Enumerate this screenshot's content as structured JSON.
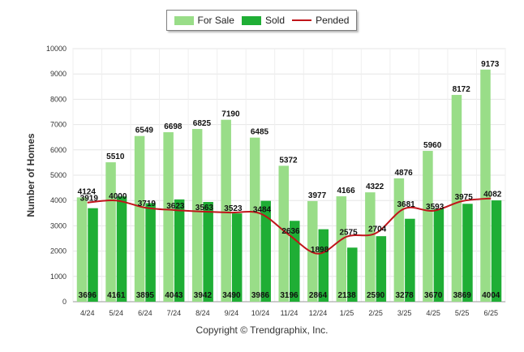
{
  "legend": {
    "for_sale_label": "For Sale",
    "sold_label": "Sold",
    "pended_label": "Pended"
  },
  "copyright": "Copyright © Trendgraphix, Inc.",
  "colors": {
    "for_sale": "#99dd88",
    "sold": "#1fae35",
    "pended": "#c0141a"
  },
  "chart_data": {
    "type": "bar",
    "ylabel": "Number of Homes",
    "ylim": [
      0,
      10000
    ],
    "yticks": [
      0,
      1000,
      2000,
      3000,
      4000,
      5000,
      6000,
      7000,
      8000,
      9000,
      10000
    ],
    "grid": true,
    "legend_position": "top",
    "categories": [
      "4/24",
      "5/24",
      "6/24",
      "7/24",
      "8/24",
      "9/24",
      "10/24",
      "11/24",
      "12/24",
      "1/25",
      "2/25",
      "3/25",
      "4/25",
      "5/25",
      "6/25"
    ],
    "series": [
      {
        "name": "For Sale",
        "type": "bar",
        "values": [
          4124,
          5510,
          6549,
          6698,
          6825,
          7190,
          6485,
          5372,
          3977,
          4166,
          4322,
          4876,
          5960,
          8172,
          9173
        ]
      },
      {
        "name": "Sold",
        "type": "bar",
        "values": [
          3696,
          4161,
          3895,
          4043,
          3942,
          3490,
          3986,
          3196,
          2864,
          2138,
          2590,
          3278,
          3670,
          3869,
          4004
        ]
      },
      {
        "name": "Pended",
        "type": "line",
        "values": [
          3919,
          4000,
          3719,
          3623,
          3563,
          3523,
          3484,
          2636,
          1898,
          2575,
          2704,
          3681,
          3593,
          3975,
          4082
        ]
      }
    ]
  }
}
